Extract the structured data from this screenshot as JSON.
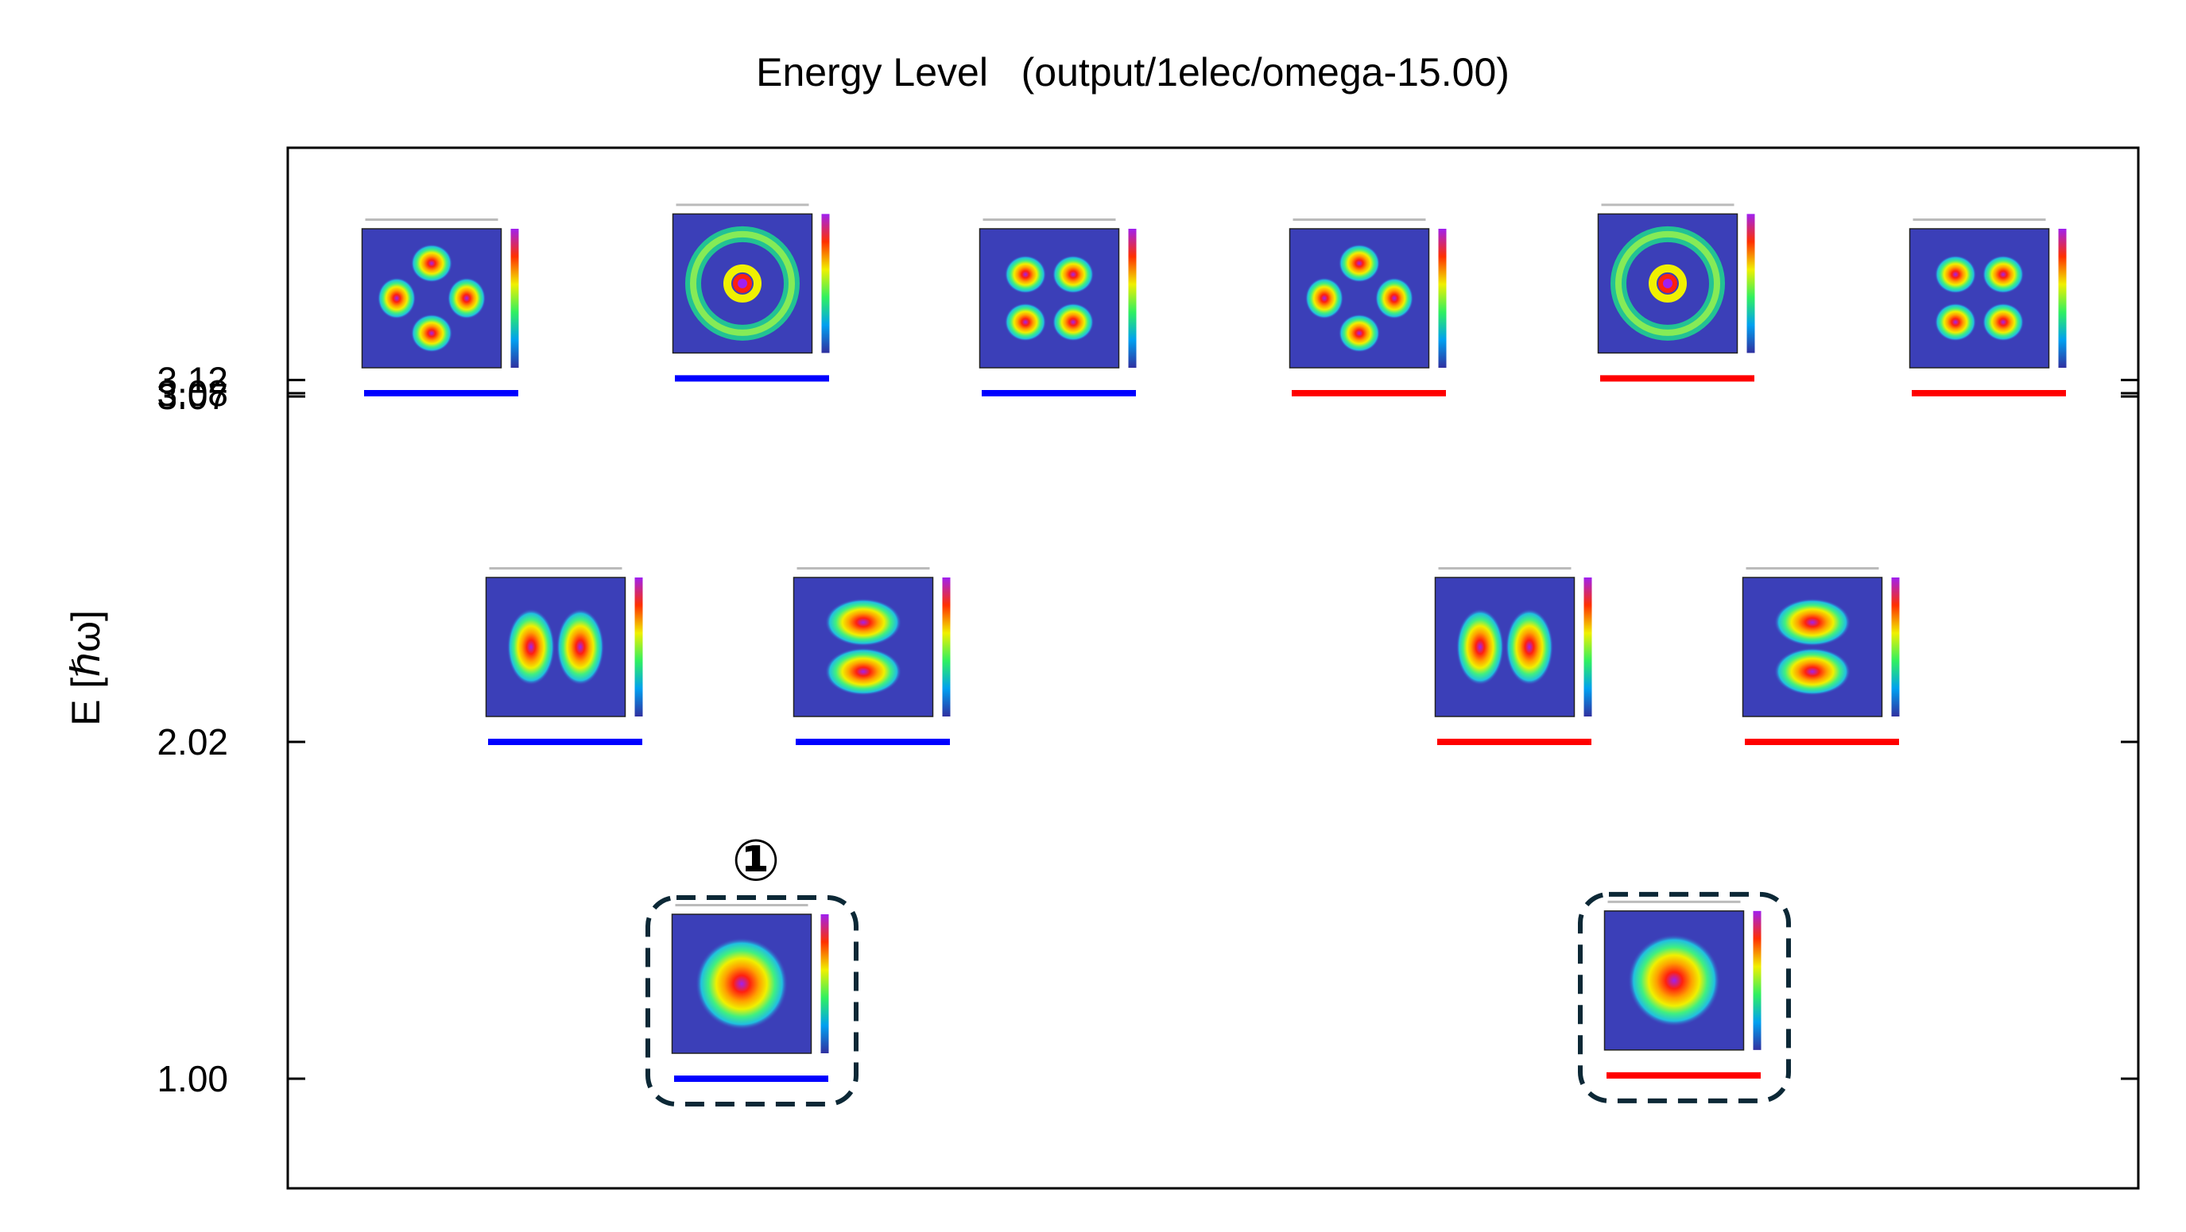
{
  "chart_data": {
    "type": "scatter",
    "title": "Energy Level   (output/1elec/omega-15.00)",
    "ylabel": "E [ℏω]",
    "y_ticks": [
      "1.00",
      "2.02",
      "3.07",
      "3.08",
      "3.12"
    ],
    "ylim": [
      0.6,
      3.75
    ],
    "series": [
      {
        "spin": "beta",
        "color": "#0000ff",
        "levels": [
          {
            "slot": 2,
            "energy": 1.0,
            "state": "s",
            "marked": true
          },
          {
            "slot": 1,
            "energy": 2.02,
            "state": "px"
          },
          {
            "slot": 2,
            "energy": 2.02,
            "state": "py"
          },
          {
            "slot": 0,
            "energy": 3.08,
            "state": "d4"
          },
          {
            "slot": 1,
            "energy": 3.125,
            "state": "ring"
          },
          {
            "slot": 2,
            "energy": 3.08,
            "state": "d2x2"
          }
        ]
      },
      {
        "spin": "alpha",
        "color": "#ff0000",
        "levels": [
          {
            "slot": 2,
            "energy": 1.01,
            "state": "s",
            "marked": true
          },
          {
            "slot": 1,
            "energy": 2.02,
            "state": "px"
          },
          {
            "slot": 2,
            "energy": 2.02,
            "state": "py"
          },
          {
            "slot": 0,
            "energy": 3.08,
            "state": "d4"
          },
          {
            "slot": 1,
            "energy": 3.125,
            "state": "ring"
          },
          {
            "slot": 2,
            "energy": 3.08,
            "state": "d2x2"
          }
        ]
      }
    ],
    "annotation": "①",
    "grid": false,
    "legend": "none"
  }
}
